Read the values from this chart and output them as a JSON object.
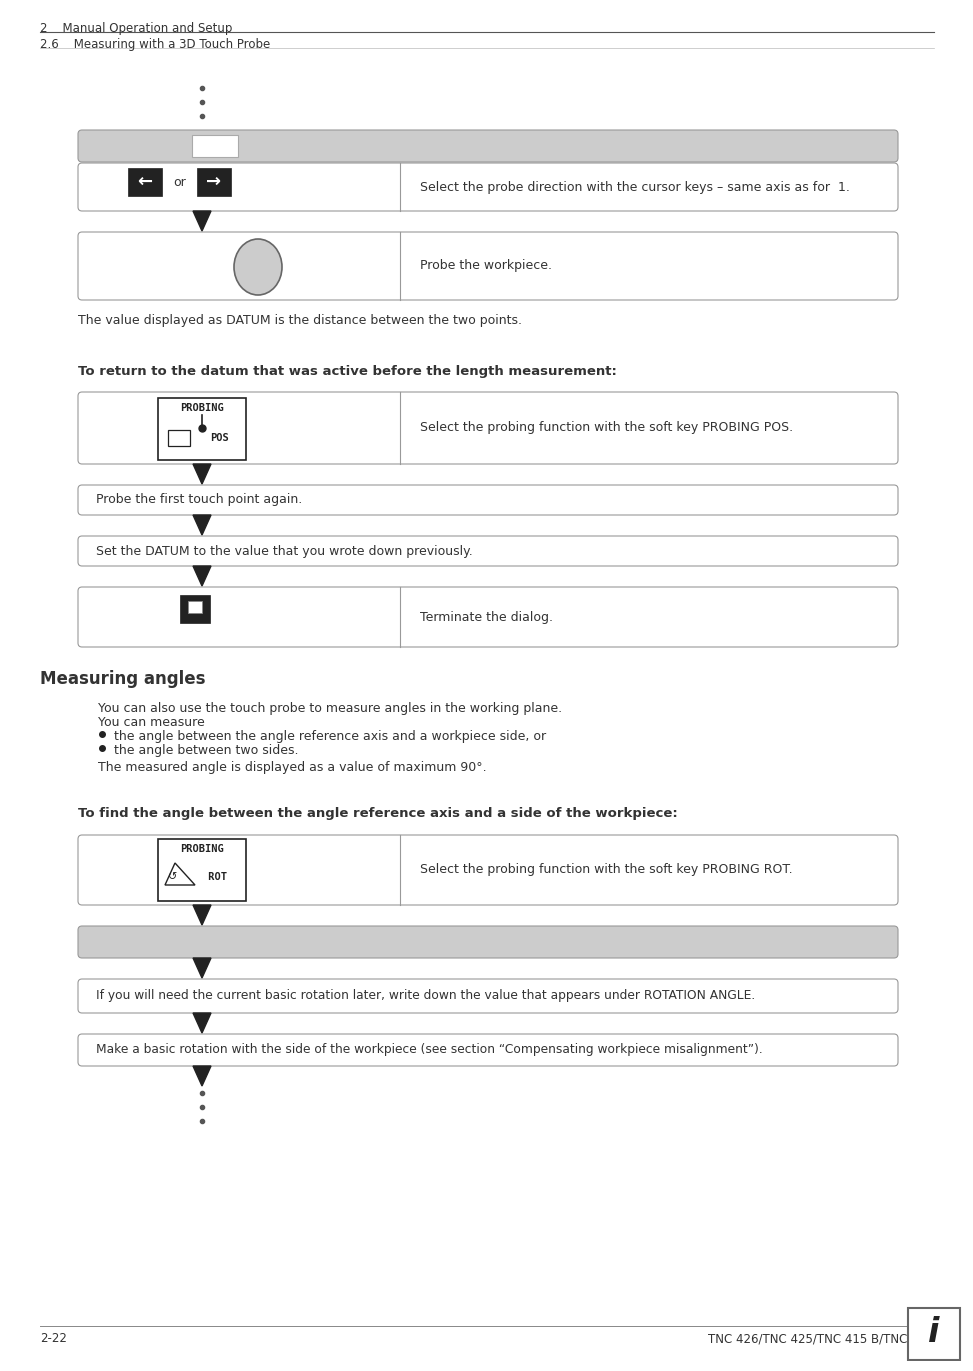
{
  "bg_color": "#ffffff",
  "header_line1": "2    Manual Operation and Setup",
  "header_line2": "2.6    Measuring with a 3D Touch Probe",
  "section_heading": "Measuring angles",
  "section_para1": "You can also use the touch probe to measure angles in the working plane.",
  "section_para2": "You can measure",
  "bullet1": "the angle between the angle reference axis and a workpiece side, or",
  "bullet2": "the angle between two sides.",
  "section_para3": "The measured angle is displayed as a value of maximum 90°.",
  "subsection_heading": "To find the angle between the angle reference axis and a side of the workpiece:",
  "rot_box_text": "Select the probing function with the soft key PROBING ROT.",
  "box2_text": "If you will need the current basic rotation later, write down the value that appears under ROTATION ANGLE.",
  "box3_text": "Make a basic rotation with the side of the workpiece (see section “Compensating workpiece misalignment”).",
  "datum_text": "The value displayed as DATUM is the distance between the two points.",
  "return_heading": "To return to the datum that was active before the length measurement:",
  "probing_pos_text": "Select the probing function with the soft key PROBING POS.",
  "probe_first_text": "Probe the first touch point again.",
  "set_datum_text": "Set the DATUM to the value that you wrote down previously.",
  "terminate_text": "Terminate the dialog.",
  "footer_left": "2-22",
  "footer_right": "TNC 426/TNC 425/TNC 415 B/TNC 407",
  "gray_color": "#cccccc",
  "border_color": "#999999",
  "text_color": "#333333",
  "dark_color": "#222222"
}
